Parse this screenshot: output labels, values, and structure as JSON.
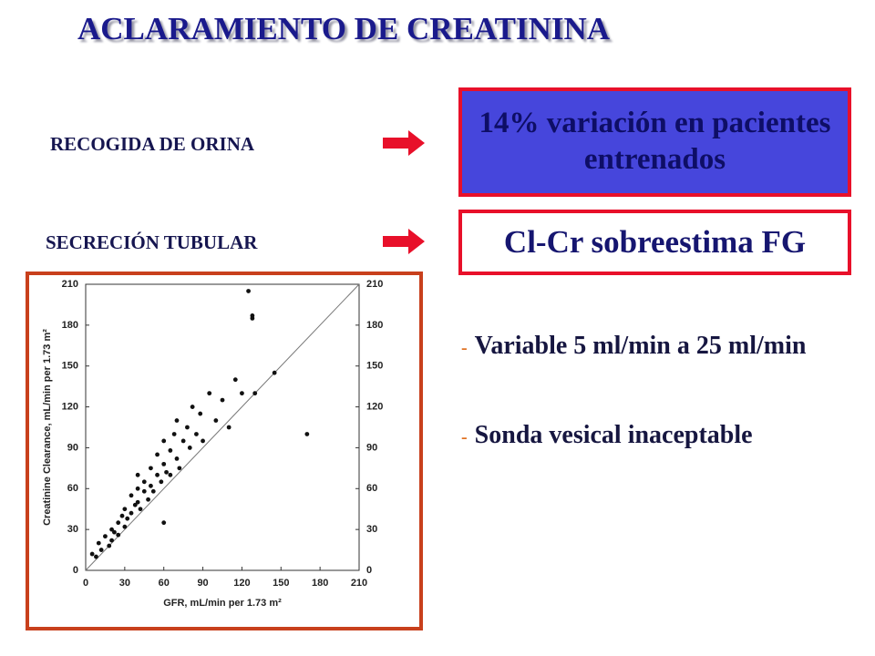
{
  "title": "ACLARAMIENTO DE CREATININA",
  "rows": [
    {
      "label": "RECOGIDA DE ORINA",
      "box": "14% variación en pacientes entrenados"
    },
    {
      "label": "SECRECIÓN TUBULAR",
      "box": "Cl-Cr sobreestima FG"
    }
  ],
  "bullets": [
    "Variable 5 ml/min a 25 ml/min",
    "Sonda vesical inaceptable"
  ],
  "chart_data": {
    "type": "scatter",
    "xlabel": "GFR, mL/min per 1.73 m²",
    "ylabel": "Creatinine Clearance, mL/min per 1.73 m²",
    "x": [
      5,
      8,
      10,
      12,
      15,
      18,
      20,
      20,
      22,
      25,
      25,
      28,
      30,
      30,
      32,
      35,
      35,
      38,
      40,
      40,
      42,
      45,
      45,
      48,
      50,
      50,
      52,
      55,
      55,
      58,
      60,
      60,
      62,
      65,
      65,
      68,
      70,
      70,
      72,
      75,
      78,
      80,
      82,
      85,
      88,
      90,
      95,
      100,
      105,
      110,
      115,
      120,
      125,
      128,
      128,
      130,
      145,
      170,
      60,
      40
    ],
    "values": [
      12,
      10,
      20,
      15,
      25,
      18,
      30,
      22,
      28,
      35,
      26,
      40,
      32,
      45,
      38,
      42,
      55,
      48,
      50,
      60,
      45,
      58,
      65,
      52,
      62,
      75,
      58,
      70,
      85,
      65,
      78,
      95,
      72,
      88,
      70,
      100,
      82,
      110,
      75,
      95,
      105,
      90,
      120,
      100,
      115,
      95,
      130,
      110,
      125,
      105,
      140,
      130,
      205,
      187,
      185,
      130,
      145,
      100,
      35,
      70
    ],
    "color": "#111111",
    "xlim": [
      0,
      210
    ],
    "ylim": [
      0,
      210
    ],
    "xticks": [
      0,
      30,
      60,
      90,
      120,
      150,
      180,
      210
    ],
    "yticks": [
      0,
      30,
      60,
      90,
      120,
      150,
      180,
      210
    ]
  }
}
